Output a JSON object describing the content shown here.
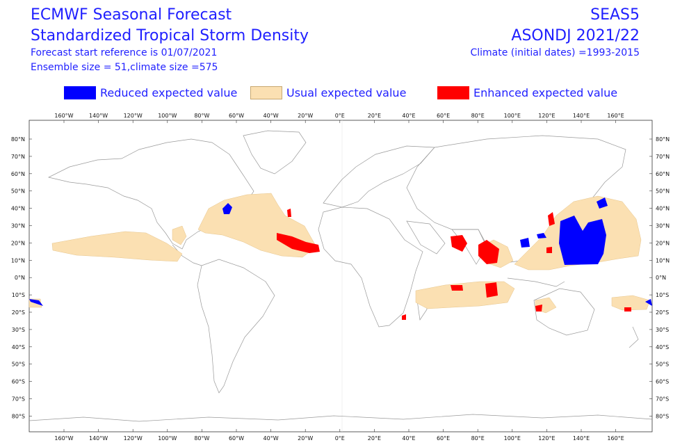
{
  "header": {
    "title_line1": "ECMWF Seasonal Forecast",
    "title_line2": "Standardized Tropical Storm Density",
    "info_line1": "Forecast start reference is 01/07/2021",
    "info_line2": "Ensemble size = 51,climate size =575",
    "system": "SEAS5",
    "period": "ASONDJ  2021/22",
    "climate": "Climate (initial dates) =1993-2015"
  },
  "legend": {
    "reduced": "Reduced expected value",
    "usual": "Usual expected value",
    "enhanced": "Enhanced expected value"
  },
  "colors": {
    "reduced": "#0000ff",
    "usual": "#fbe0b2",
    "enhanced": "#ff0000",
    "text": "#1f1fff",
    "coastline": "#999999"
  },
  "axes": {
    "lon_labels": [
      "160°W",
      "140°W",
      "120°W",
      "100°W",
      "80°W",
      "60°W",
      "40°W",
      "20°W",
      "0°E",
      "20°E",
      "40°E",
      "60°E",
      "80°E",
      "100°E",
      "120°E",
      "140°E",
      "160°E"
    ],
    "lat_labels": [
      "80°N",
      "70°N",
      "60°N",
      "50°N",
      "40°N",
      "30°N",
      "20°N",
      "10°N",
      "0°N",
      "10°S",
      "20°S",
      "30°S",
      "40°S",
      "50°S",
      "60°S",
      "70°S",
      "80°S"
    ]
  }
}
